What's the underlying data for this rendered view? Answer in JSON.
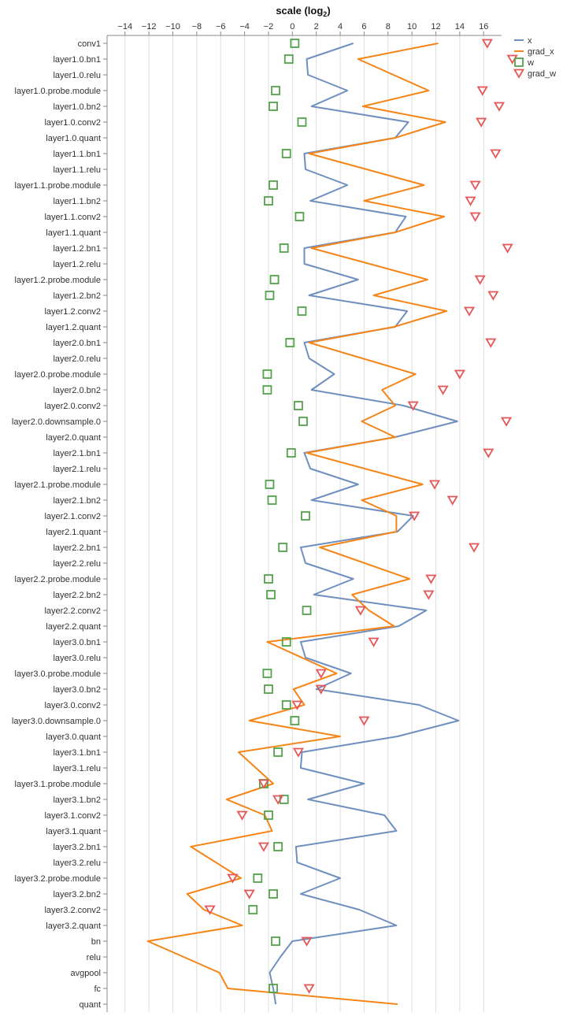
{
  "chart_data": {
    "type": "line",
    "title": "",
    "xlabel": "scale (log",
    "xlabel_sub": "2",
    "xlabel_close": ")",
    "xlim": [
      -15.5,
      17.5
    ],
    "xticks": [
      -14,
      -12,
      -10,
      -8,
      -6,
      -4,
      -2,
      0,
      2,
      4,
      6,
      8,
      10,
      12,
      14,
      16
    ],
    "grid": true,
    "legend_position": "top-right",
    "categories": [
      "conv1",
      "layer1.0.bn1",
      "layer1.0.relu",
      "layer1.0.probe.module",
      "layer1.0.bn2",
      "layer1.0.conv2",
      "layer1.0.quant",
      "layer1.1.bn1",
      "layer1.1.relu",
      "layer1.1.probe.module",
      "layer1.1.bn2",
      "layer1.1.conv2",
      "layer1.1.quant",
      "layer1.2.bn1",
      "layer1.2.relu",
      "layer1.2.probe.module",
      "layer1.2.bn2",
      "layer1.2.conv2",
      "layer1.2.quant",
      "layer2.0.bn1",
      "layer2.0.relu",
      "layer2.0.probe.module",
      "layer2.0.bn2",
      "layer2.0.conv2",
      "layer2.0.downsample.0",
      "layer2.0.quant",
      "layer2.1.bn1",
      "layer2.1.relu",
      "layer2.1.probe.module",
      "layer2.1.bn2",
      "layer2.1.conv2",
      "layer2.1.quant",
      "layer2.2.bn1",
      "layer2.2.relu",
      "layer2.2.probe.module",
      "layer2.2.bn2",
      "layer2.2.conv2",
      "layer2.2.quant",
      "layer3.0.bn1",
      "layer3.0.relu",
      "layer3.0.probe.module",
      "layer3.0.bn2",
      "layer3.0.conv2",
      "layer3.0.downsample.0",
      "layer3.0.quant",
      "layer3.1.bn1",
      "layer3.1.relu",
      "layer3.1.probe.module",
      "layer3.1.bn2",
      "layer3.1.conv2",
      "layer3.1.quant",
      "layer3.2.bn1",
      "layer3.2.relu",
      "layer3.2.probe.module",
      "layer3.2.bn2",
      "layer3.2.conv2",
      "layer3.2.quant",
      "bn",
      "relu",
      "avgpool",
      "fc",
      "quant"
    ],
    "series": [
      {
        "name": "x",
        "mark": "line",
        "color": "#6f8fbf",
        "values": [
          5.1,
          1.2,
          1.3,
          4.6,
          1.6,
          9.7,
          8.6,
          1.0,
          1.1,
          4.6,
          1.5,
          9.5,
          8.6,
          1.0,
          1.0,
          5.5,
          1.4,
          9.6,
          8.6,
          1.0,
          1.4,
          3.5,
          1.6,
          9.3,
          13.8,
          8.6,
          1.0,
          1.5,
          5.5,
          1.6,
          10.1,
          8.8,
          0.7,
          1.1,
          5.1,
          1.8,
          11.2,
          8.9,
          0.7,
          1.1,
          4.9,
          2.0,
          10.6,
          13.9,
          8.8,
          0.8,
          0.7,
          6.0,
          1.3,
          7.7,
          8.7,
          0.3,
          0.4,
          4.0,
          0.7,
          5.6,
          8.7,
          0.0,
          -1.0,
          -1.9,
          -1.6,
          -1.4
        ]
      },
      {
        "name": "grad_x",
        "mark": "line",
        "color": "#f58518",
        "values": [
          12.2,
          5.5,
          null,
          11.4,
          5.9,
          12.8,
          8.6,
          1.4,
          null,
          11.0,
          6.0,
          12.7,
          8.6,
          1.6,
          null,
          11.3,
          6.8,
          12.9,
          8.5,
          1.4,
          null,
          10.3,
          7.5,
          8.6,
          5.8,
          8.6,
          1.2,
          null,
          10.9,
          5.8,
          8.7,
          8.7,
          2.3,
          null,
          9.8,
          5.0,
          6.4,
          8.5,
          -2.1,
          null,
          3.7,
          0.1,
          1.0,
          -3.6,
          4.0,
          -4.5,
          null,
          -1.6,
          -5.5,
          -2.3,
          -1.7,
          -8.5,
          null,
          -4.3,
          -8.8,
          -7.4,
          -4.2,
          -12.1,
          null,
          -6.1,
          -5.4,
          8.8
        ]
      },
      {
        "name": "w",
        "mark": "square",
        "color": "#54a24b",
        "values": [
          0.2,
          -0.3,
          null,
          -1.4,
          -1.6,
          0.8,
          null,
          -0.5,
          null,
          -1.6,
          -2.0,
          0.6,
          null,
          -0.7,
          null,
          -1.5,
          -1.9,
          0.8,
          null,
          -0.2,
          null,
          -2.1,
          -2.1,
          0.5,
          0.9,
          null,
          -0.1,
          null,
          -1.9,
          -1.7,
          1.1,
          null,
          -0.8,
          null,
          -2.0,
          -1.8,
          1.2,
          null,
          -0.5,
          null,
          -2.1,
          -2.0,
          -0.5,
          0.2,
          null,
          -1.2,
          null,
          -2.4,
          -0.7,
          -2.0,
          null,
          -1.2,
          null,
          -2.9,
          -1.6,
          -3.3,
          null,
          -1.4,
          null,
          null,
          -1.6,
          null
        ]
      },
      {
        "name": "grad_w",
        "mark": "triangle-down",
        "color": "#e45756",
        "values": [
          16.3,
          18.4,
          null,
          15.9,
          17.3,
          15.8,
          null,
          17.0,
          null,
          15.3,
          14.9,
          15.3,
          null,
          18.0,
          null,
          15.7,
          16.8,
          14.8,
          null,
          16.6,
          null,
          14.0,
          12.6,
          10.1,
          17.9,
          null,
          16.4,
          null,
          11.9,
          13.4,
          10.2,
          null,
          15.2,
          null,
          11.6,
          11.4,
          5.7,
          null,
          6.8,
          null,
          2.4,
          2.4,
          0.4,
          6.0,
          null,
          0.5,
          null,
          -2.4,
          -1.2,
          -4.2,
          null,
          -2.4,
          null,
          -5.0,
          -3.6,
          -6.9,
          null,
          1.2,
          null,
          null,
          1.4,
          null
        ]
      }
    ]
  }
}
